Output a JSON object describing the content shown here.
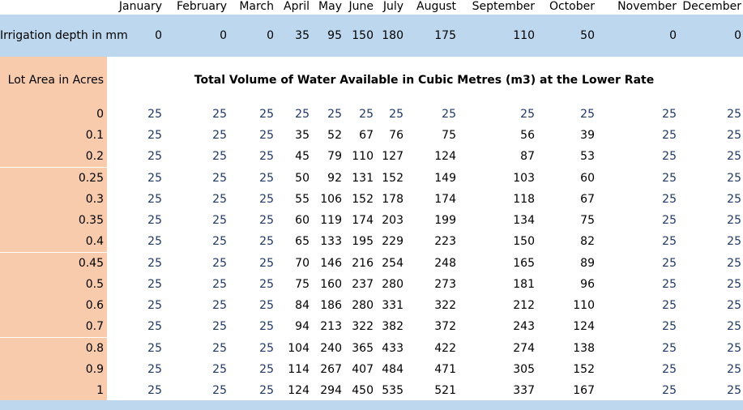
{
  "months": [
    "January",
    "February",
    "March",
    "April",
    "May",
    "June",
    "July",
    "August",
    "September",
    "October",
    "November",
    "December"
  ],
  "irrigation": {
    "label": "Irrigation depth in mm",
    "values": [
      "0",
      "0",
      "0",
      "35",
      "95",
      "150",
      "180",
      "175",
      "110",
      "50",
      "0",
      "0"
    ]
  },
  "lot_area_label": "Lot Area in Acres",
  "table_title": "Total Volume of Water Available in Cubic Metres (m3) at the Lower Rate",
  "rows": [
    {
      "area": "0",
      "values": [
        "25",
        "25",
        "25",
        "25",
        "25",
        "25",
        "25",
        "25",
        "25",
        "25",
        "25",
        "25"
      ]
    },
    {
      "area": "0.1",
      "values": [
        "25",
        "25",
        "25",
        "35",
        "52",
        "67",
        "76",
        "75",
        "56",
        "39",
        "25",
        "25"
      ]
    },
    {
      "area": "0.2",
      "values": [
        "25",
        "25",
        "25",
        "45",
        "79",
        "110",
        "127",
        "124",
        "87",
        "53",
        "25",
        "25"
      ]
    },
    {
      "area": "0.25",
      "values": [
        "25",
        "25",
        "25",
        "50",
        "92",
        "131",
        "152",
        "149",
        "103",
        "60",
        "25",
        "25"
      ]
    },
    {
      "area": "0.3",
      "values": [
        "25",
        "25",
        "25",
        "55",
        "106",
        "152",
        "178",
        "174",
        "118",
        "67",
        "25",
        "25"
      ]
    },
    {
      "area": "0.35",
      "values": [
        "25",
        "25",
        "25",
        "60",
        "119",
        "174",
        "203",
        "199",
        "134",
        "75",
        "25",
        "25"
      ]
    },
    {
      "area": "0.4",
      "values": [
        "25",
        "25",
        "25",
        "65",
        "133",
        "195",
        "229",
        "223",
        "150",
        "82",
        "25",
        "25"
      ]
    },
    {
      "area": "0.45",
      "values": [
        "25",
        "25",
        "25",
        "70",
        "146",
        "216",
        "254",
        "248",
        "165",
        "89",
        "25",
        "25"
      ]
    },
    {
      "area": "0.5",
      "values": [
        "25",
        "25",
        "25",
        "75",
        "160",
        "237",
        "280",
        "273",
        "181",
        "96",
        "25",
        "25"
      ]
    },
    {
      "area": "0.6",
      "values": [
        "25",
        "25",
        "25",
        "84",
        "186",
        "280",
        "331",
        "322",
        "212",
        "110",
        "25",
        "25"
      ]
    },
    {
      "area": "0.7",
      "values": [
        "25",
        "25",
        "25",
        "94",
        "213",
        "322",
        "382",
        "372",
        "243",
        "124",
        "25",
        "25"
      ]
    },
    {
      "area": "0.8",
      "values": [
        "25",
        "25",
        "25",
        "104",
        "240",
        "365",
        "433",
        "422",
        "274",
        "138",
        "25",
        "25"
      ]
    },
    {
      "area": "0.9",
      "values": [
        "25",
        "25",
        "25",
        "114",
        "267",
        "407",
        "484",
        "471",
        "305",
        "152",
        "25",
        "25"
      ]
    },
    {
      "area": "1",
      "values": [
        "25",
        "25",
        "25",
        "124",
        "294",
        "450",
        "535",
        "521",
        "337",
        "167",
        "25",
        "25"
      ]
    }
  ]
}
